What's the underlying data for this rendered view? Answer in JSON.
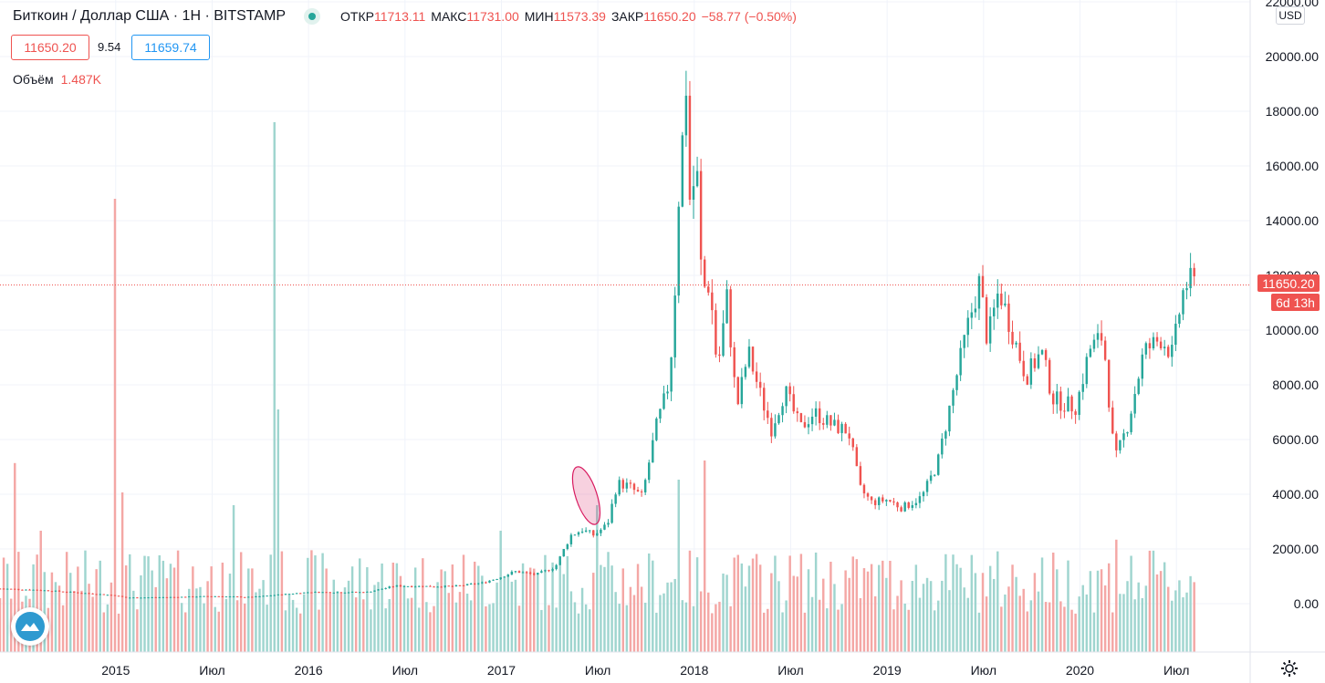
{
  "header": {
    "symbol": "Биткоин / Доллар США · 1Н · BITSTAMP",
    "open_label": "ОТКР",
    "open_value": "11713.11",
    "high_label": "МАКС",
    "high_value": "11731.00",
    "low_label": "МИН",
    "low_value": "11573.39",
    "close_label": "ЗАКР",
    "close_value": "11650.20",
    "change": "−58.77 (−0.50%)"
  },
  "quote": {
    "bid": "11650.20",
    "spread": "9.54",
    "ask": "11659.74"
  },
  "volume_legend": {
    "label": "Объём",
    "value": "1.487K"
  },
  "price_scale": {
    "currency": "USD",
    "last_price": "11650.20",
    "countdown": "6d 13h"
  },
  "colors": {
    "up": "#26a69a",
    "down": "#ef5350",
    "volume_up": "#9fd5cf",
    "volume_down": "#f4a7a5",
    "grid": "#f0f3fa",
    "marker": "#d81b60"
  },
  "icons": {
    "logo": "tradingview-logo-icon",
    "settings": "gear-icon"
  },
  "chart_data": {
    "type": "candlestick",
    "x_axis": {
      "tick_labels": [
        "2015",
        "Июл",
        "2016",
        "Июл",
        "2017",
        "Июл",
        "2018",
        "Июл",
        "2019",
        "Июл",
        "2020",
        "Июл"
      ],
      "tick_times": [
        2015.0,
        2015.5,
        2016.0,
        2016.5,
        2017.0,
        2017.5,
        2018.0,
        2018.5,
        2019.0,
        2019.5,
        2020.0,
        2020.5
      ],
      "range": [
        2014.4,
        2020.75
      ]
    },
    "y_axis": {
      "tick_labels": [
        "22000.00",
        "20000.00",
        "18000.00",
        "16000.00",
        "14000.00",
        "12000.00",
        "10000.00",
        "8000.00",
        "6000.00",
        "4000.00",
        "2000.00",
        "0.00"
      ],
      "tick_values": [
        22000,
        20000,
        18000,
        16000,
        14000,
        12000,
        10000,
        8000,
        6000,
        4000,
        2000,
        0
      ],
      "range": [
        0,
        22000
      ]
    },
    "last_price": 11650.2,
    "highlight_ellipse": {
      "t": 2017.44,
      "price": 3950,
      "dt": 0.055,
      "dprice": 1100
    },
    "price_path": [
      [
        2014.4,
        550
      ],
      [
        2014.6,
        500
      ],
      [
        2014.85,
        380
      ],
      [
        2015.0,
        300
      ],
      [
        2015.05,
        220
      ],
      [
        2015.3,
        240
      ],
      [
        2015.5,
        275
      ],
      [
        2015.7,
        240
      ],
      [
        2015.85,
        330
      ],
      [
        2016.0,
        420
      ],
      [
        2016.3,
        420
      ],
      [
        2016.45,
        650
      ],
      [
        2016.55,
        640
      ],
      [
        2016.75,
        630
      ],
      [
        2016.9,
        760
      ],
      [
        2017.0,
        980
      ],
      [
        2017.07,
        1180
      ],
      [
        2017.18,
        1060
      ],
      [
        2017.28,
        1350
      ],
      [
        2017.36,
        2500
      ],
      [
        2017.42,
        2700
      ],
      [
        2017.48,
        2500
      ],
      [
        2017.55,
        2900
      ],
      [
        2017.6,
        4400
      ],
      [
        2017.66,
        4300
      ],
      [
        2017.73,
        3900
      ],
      [
        2017.8,
        6400
      ],
      [
        2017.86,
        7800
      ],
      [
        2017.89,
        9800
      ],
      [
        2017.92,
        15000
      ],
      [
        2017.96,
        19200
      ],
      [
        2017.98,
        14000
      ],
      [
        2018.01,
        16400
      ],
      [
        2018.04,
        11500
      ],
      [
        2018.08,
        11700
      ],
      [
        2018.12,
        8500
      ],
      [
        2018.17,
        11200
      ],
      [
        2018.22,
        7100
      ],
      [
        2018.28,
        9200
      ],
      [
        2018.34,
        7700
      ],
      [
        2018.4,
        6400
      ],
      [
        2018.47,
        7800
      ],
      [
        2018.55,
        6400
      ],
      [
        2018.62,
        7000
      ],
      [
        2018.72,
        6500
      ],
      [
        2018.8,
        6300
      ],
      [
        2018.86,
        4200
      ],
      [
        2018.92,
        3700
      ],
      [
        2019.0,
        3800
      ],
      [
        2019.08,
        3500
      ],
      [
        2019.18,
        3900
      ],
      [
        2019.26,
        5100
      ],
      [
        2019.35,
        8000
      ],
      [
        2019.42,
        10200
      ],
      [
        2019.48,
        11800
      ],
      [
        2019.52,
        9600
      ],
      [
        2019.58,
        11500
      ],
      [
        2019.65,
        9900
      ],
      [
        2019.72,
        8300
      ],
      [
        2019.8,
        9200
      ],
      [
        2019.86,
        7500
      ],
      [
        2019.92,
        7300
      ],
      [
        2019.98,
        7200
      ],
      [
        2020.05,
        9300
      ],
      [
        2020.12,
        9800
      ],
      [
        2020.18,
        5200
      ],
      [
        2020.25,
        6600
      ],
      [
        2020.33,
        9200
      ],
      [
        2020.42,
        9700
      ],
      [
        2020.48,
        9100
      ],
      [
        2020.53,
        11300
      ],
      [
        2020.56,
        11800
      ],
      [
        2020.6,
        11650
      ]
    ],
    "volume_spikes": [
      [
        2014.47,
        1480
      ],
      [
        2014.61,
        950
      ],
      [
        2015.0,
        3550
      ],
      [
        2015.03,
        1250
      ],
      [
        2015.56,
        700
      ],
      [
        2015.62,
        1150
      ],
      [
        2015.82,
        4150
      ],
      [
        2015.84,
        1900
      ],
      [
        2016.44,
        700
      ],
      [
        2017.0,
        950
      ],
      [
        2017.5,
        1150
      ],
      [
        2017.92,
        1350
      ],
      [
        2018.05,
        1500
      ],
      [
        2019.0,
        580
      ],
      [
        2020.18,
        880
      ]
    ]
  }
}
